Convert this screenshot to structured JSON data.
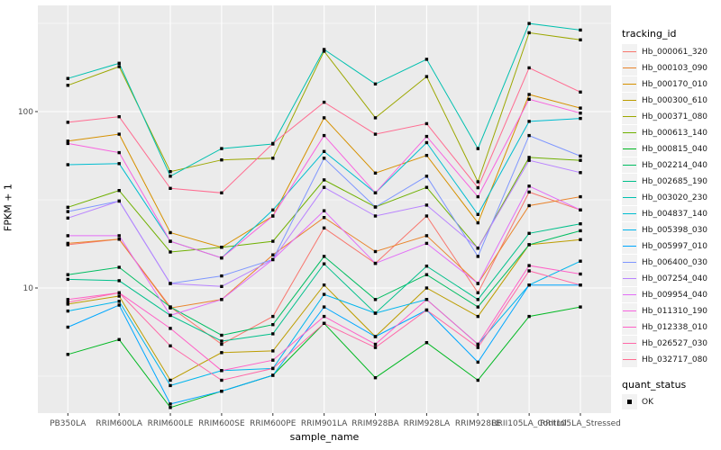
{
  "chart_data": {
    "type": "line",
    "title": "",
    "xlabel": "sample_name",
    "ylabel": "FPKM + 1",
    "y_scale": "log10",
    "ylim": [
      2.0,
      400
    ],
    "y_major_ticks": [
      10,
      100
    ],
    "y_minor_breaks": [
      3.162,
      31.62,
      316.2
    ],
    "grid": "on",
    "legend_position": "right",
    "panel_background": "#EBEBEB",
    "gridline_color": "#FFFFFF",
    "tick_label_color": "#4D4D4D",
    "point_marker": "black-square",
    "categories": [
      "PB350LA",
      "RRIM600LA",
      "RRIM600LE",
      "RRIM600SE",
      "RRIM600PE",
      "RRIM901LA",
      "RRIM928BA",
      "RRIM928LA",
      "RRIM928LE",
      "RRII105LA_Control",
      "RRII105LA_Stressed"
    ],
    "series": [
      {
        "name": "Hb_000061_320",
        "color": "#F8766D",
        "values": [
          17.6,
          18.9,
          7.8,
          4.8,
          6.9,
          21.9,
          13.8,
          25.6,
          9.4,
          35.0,
          27.7
        ]
      },
      {
        "name": "Hb_000103_090",
        "color": "#E9842C",
        "values": [
          17.9,
          18.9,
          7.7,
          8.6,
          15.4,
          25.1,
          16.1,
          19.8,
          10.6,
          29.3,
          32.9
        ]
      },
      {
        "name": "Hb_000170_010",
        "color": "#D69100",
        "values": [
          68.0,
          74.5,
          20.6,
          17.0,
          25.6,
          92.2,
          44.8,
          56.4,
          23.4,
          125.0,
          104.7
        ]
      },
      {
        "name": "Hb_000300_610",
        "color": "#BC9D00",
        "values": [
          8.1,
          9.0,
          3.0,
          4.3,
          4.4,
          10.4,
          5.3,
          10.0,
          6.9,
          17.6,
          18.8
        ]
      },
      {
        "name": "Hb_000371_080",
        "color": "#9CA700",
        "values": [
          141,
          180,
          45.7,
          53.2,
          54.4,
          220,
          92.2,
          158,
          40.0,
          280,
          255
        ]
      },
      {
        "name": "Hb_000613_140",
        "color": "#6FB000",
        "values": [
          28.7,
          35.7,
          16.0,
          17.0,
          18.4,
          41.0,
          28.8,
          37.2,
          16.8,
          55.0,
          52.9
        ]
      },
      {
        "name": "Hb_000815_040",
        "color": "#00B822",
        "values": [
          4.2,
          5.1,
          2.1,
          2.6,
          3.2,
          6.3,
          3.1,
          4.9,
          3.0,
          6.9,
          7.8
        ]
      },
      {
        "name": "Hb_002214_040",
        "color": "#00BD61",
        "values": [
          11.9,
          13.1,
          7.8,
          5.4,
          6.2,
          15.1,
          8.6,
          11.9,
          7.8,
          17.6,
          21.1
        ]
      },
      {
        "name": "Hb_002685_190",
        "color": "#00C08B",
        "values": [
          11.2,
          11.0,
          7.0,
          5.0,
          5.5,
          13.7,
          7.2,
          13.3,
          8.6,
          20.4,
          23.1
        ]
      },
      {
        "name": "Hb_003020_230",
        "color": "#00C0AF",
        "values": [
          154,
          188,
          43.0,
          61.7,
          65.5,
          225,
          143.5,
          198,
          61.7,
          316,
          290
        ]
      },
      {
        "name": "Hb_004837_140",
        "color": "#00BDD0",
        "values": [
          50.0,
          50.7,
          18.4,
          14.8,
          27.7,
          59.4,
          34.6,
          66.7,
          26.1,
          88.0,
          91.5
        ]
      },
      {
        "name": "Hb_005398_030",
        "color": "#00B5EC",
        "values": [
          7.4,
          8.4,
          2.8,
          3.4,
          3.5,
          9.2,
          7.2,
          8.6,
          4.8,
          10.4,
          14.2
        ]
      },
      {
        "name": "Hb_005997_010",
        "color": "#00A7FF",
        "values": [
          6.0,
          8.0,
          2.2,
          2.6,
          3.2,
          7.8,
          5.3,
          7.5,
          3.8,
          10.4,
          10.4
        ]
      },
      {
        "name": "Hb_006400_030",
        "color": "#7E96FF",
        "values": [
          27.1,
          31.1,
          10.6,
          11.7,
          14.5,
          54.4,
          28.8,
          43.0,
          15.1,
          73.2,
          56.0
        ]
      },
      {
        "name": "Hb_007254_040",
        "color": "#B983FF",
        "values": [
          24.9,
          31.1,
          10.6,
          10.2,
          14.5,
          37.2,
          25.6,
          29.5,
          16.8,
          52.9,
          45.1
        ]
      },
      {
        "name": "Hb_009954_040",
        "color": "#E26EF7",
        "values": [
          19.8,
          19.8,
          7.0,
          8.6,
          14.5,
          27.4,
          13.8,
          17.9,
          10.6,
          37.8,
          27.7
        ]
      },
      {
        "name": "Hb_011310_190",
        "color": "#F863DF",
        "values": [
          66.0,
          58.5,
          18.4,
          14.8,
          25.6,
          73.2,
          34.6,
          72.3,
          32.9,
          117.5,
          98.0
        ]
      },
      {
        "name": "Hb_012338_010",
        "color": "#FF61C7",
        "values": [
          8.6,
          9.4,
          5.9,
          3.4,
          3.9,
          6.9,
          4.8,
          8.6,
          4.8,
          13.4,
          12.0
        ]
      },
      {
        "name": "Hb_026527_030",
        "color": "#FF68A8",
        "values": [
          8.3,
          9.4,
          4.7,
          3.0,
          3.5,
          6.3,
          4.6,
          7.5,
          4.6,
          12.5,
          10.4
        ]
      },
      {
        "name": "Hb_032717_080",
        "color": "#FF6C91",
        "values": [
          87.0,
          93.5,
          36.7,
          34.6,
          66.0,
          113.0,
          74.5,
          85.4,
          37.0,
          177.0,
          129.0
        ]
      }
    ]
  },
  "legend": {
    "tracking_title": "tracking_id",
    "quant_title": "quant_status",
    "quant_value": "OK"
  },
  "axes": {
    "x_title": "sample_name",
    "y_title": "FPKM + 1",
    "y_tick_labels": [
      "100",
      "10"
    ]
  }
}
